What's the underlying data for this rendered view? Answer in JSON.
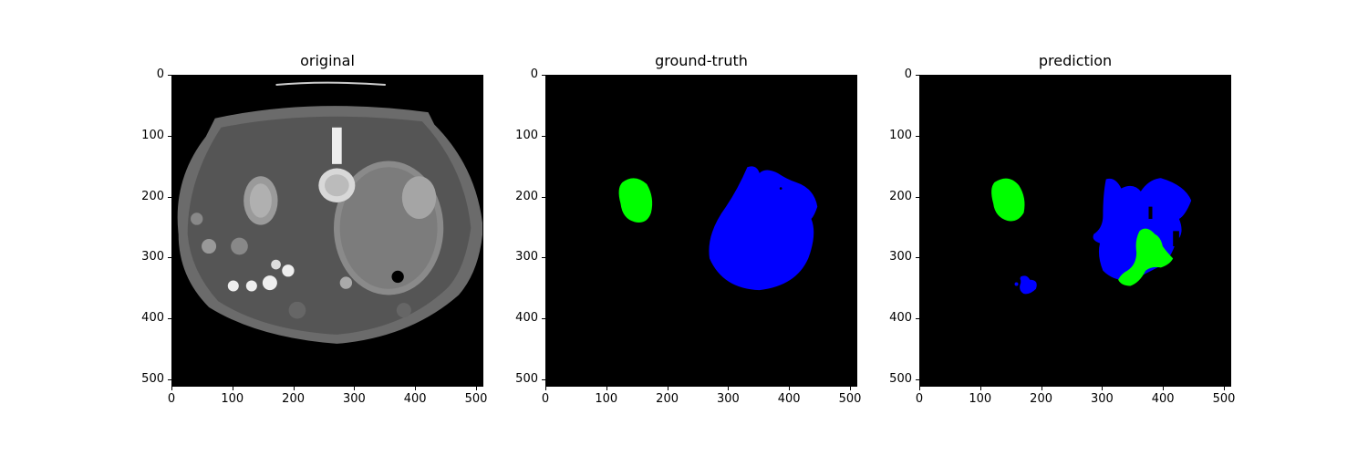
{
  "panels": [
    {
      "title": "original"
    },
    {
      "title": "ground-truth"
    },
    {
      "title": "prediction"
    }
  ],
  "axes": {
    "xticks": [
      "0",
      "100",
      "200",
      "300",
      "400",
      "500"
    ],
    "yticks": [
      "0",
      "100",
      "200",
      "300",
      "400",
      "500"
    ],
    "range": [
      0,
      512
    ]
  },
  "colors": {
    "class_1": "#00ff00",
    "class_2": "#0000ff",
    "background": "#000000"
  }
}
